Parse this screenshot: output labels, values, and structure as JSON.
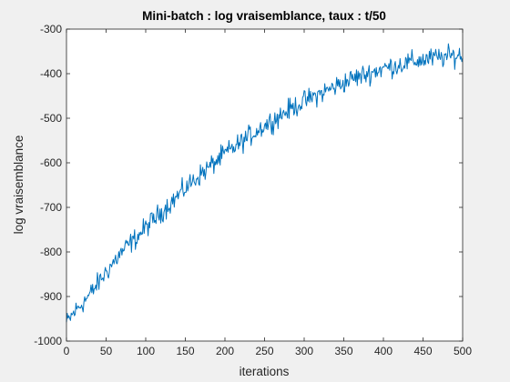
{
  "chart_data": {
    "type": "line",
    "title": "Mini-batch : log vraisemblance, taux : t/50",
    "xlabel": "iterations",
    "ylabel": "log vraisemblance",
    "xlim": [
      0,
      500
    ],
    "ylim": [
      -1000,
      -300
    ],
    "xticks": [
      0,
      50,
      100,
      150,
      200,
      250,
      300,
      350,
      400,
      450,
      500
    ],
    "yticks": [
      -1000,
      -900,
      -800,
      -700,
      -600,
      -500,
      -400,
      -300
    ],
    "grid": false,
    "line_color": "#0072bd",
    "series": [
      {
        "noise_amplitude": 18,
        "x": [
          0,
          10,
          20,
          30,
          40,
          50,
          60,
          70,
          80,
          90,
          100,
          120,
          140,
          160,
          180,
          200,
          220,
          240,
          260,
          280,
          300,
          320,
          340,
          360,
          380,
          400,
          420,
          440,
          460,
          480,
          500
        ],
        "values": [
          -960,
          -935,
          -915,
          -895,
          -870,
          -845,
          -822,
          -800,
          -782,
          -765,
          -745,
          -710,
          -675,
          -640,
          -610,
          -580,
          -555,
          -528,
          -505,
          -482,
          -462,
          -445,
          -428,
          -412,
          -400,
          -388,
          -380,
          -372,
          -366,
          -362,
          -358
        ]
      }
    ]
  }
}
